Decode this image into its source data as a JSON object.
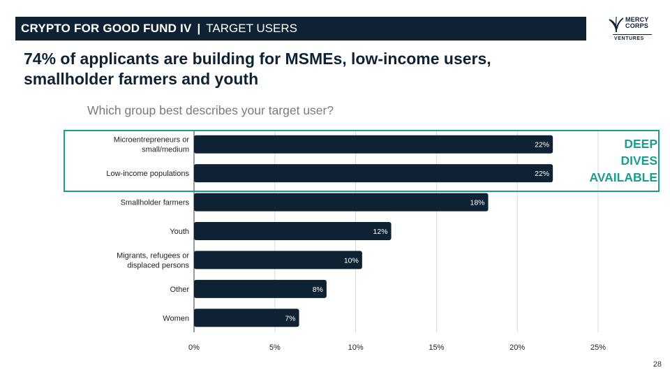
{
  "header": {
    "title": "CRYPTO FOR GOOD FUND IV",
    "separator": "|",
    "subtitle": "TARGET USERS"
  },
  "logo": {
    "line1": "MERCY",
    "line2": "CORPS",
    "line3": "VENTURES"
  },
  "headline": "74% of applicants are building for MSMEs, low-income users, smallholder farmers and youth",
  "callout": {
    "lines": [
      "DEEP",
      "DIVES",
      "AVAILABLE"
    ]
  },
  "page_number": "28",
  "colors": {
    "header_bg": "#0f2233",
    "bar": "#0f2233",
    "accent": "#1a9e8f",
    "grid": "#d9d9d9"
  },
  "chart_data": {
    "type": "bar",
    "orientation": "horizontal",
    "title": "Which group best describes your target user?",
    "categories": [
      [
        "Microentrepreneurs or",
        "small/medium"
      ],
      [
        "Low-income populations"
      ],
      [
        "Smallholder farmers"
      ],
      [
        "Youth"
      ],
      [
        "Migrants, refugees or",
        "displaced persons"
      ],
      [
        "Other"
      ],
      [
        "Women"
      ]
    ],
    "values": [
      22.2,
      22.2,
      18.2,
      12.2,
      10.4,
      8.2,
      6.5
    ],
    "data_labels": [
      "22%",
      "22%",
      "18%",
      "12%",
      "10%",
      "8%",
      "7%"
    ],
    "x_ticks": [
      0,
      5,
      10,
      15,
      20,
      25
    ],
    "x_tick_labels": [
      "0%",
      "5%",
      "10%",
      "15%",
      "20%",
      "25%"
    ],
    "xlim": [
      0,
      25
    ],
    "grid": true,
    "highlighted_categories": [
      0,
      1
    ]
  }
}
